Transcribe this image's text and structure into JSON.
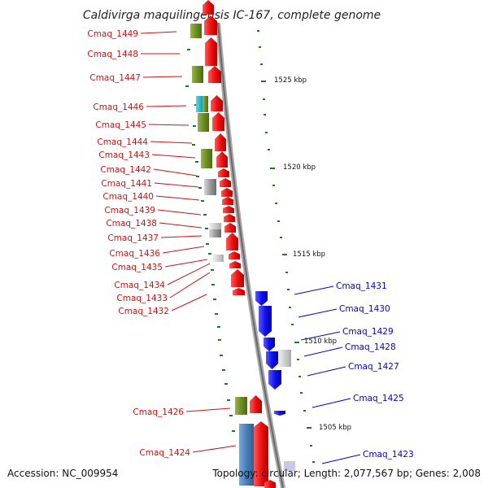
{
  "title": "Caldivirga maquilingensis IC-167, complete genome",
  "footer": {
    "accession": "Accession: NC_009954",
    "summary": "Topology: circular; Length: 2,077,567 bp; Genes: 2,008"
  },
  "scale_labels": [
    "1525 kbp",
    "1520 kbp",
    "1515 kbp",
    "1510 kbp",
    "1505 kbp"
  ],
  "forward_genes": [
    "Cmaq_1449",
    "Cmaq_1448",
    "Cmaq_1447",
    "Cmaq_1446",
    "Cmaq_1445",
    "Cmaq_1444",
    "Cmaq_1443",
    "Cmaq_1442",
    "Cmaq_1441",
    "Cmaq_1440",
    "Cmaq_1439",
    "Cmaq_1438",
    "Cmaq_1437",
    "Cmaq_1436",
    "Cmaq_1435",
    "Cmaq_1434",
    "Cmaq_1433",
    "Cmaq_1432",
    "Cmaq_1426",
    "Cmaq_1424"
  ],
  "reverse_genes": [
    "Cmaq_1431",
    "Cmaq_1430",
    "Cmaq_1429",
    "Cmaq_1428",
    "Cmaq_1427",
    "Cmaq_1425",
    "Cmaq_1423"
  ],
  "colors": {
    "forward": "#ee1111",
    "reverse": "#1111ee",
    "forward_label": "#cc1111",
    "reverse_label": "#0000cc",
    "cog_green": "#6b8e23",
    "cog_gray": "#888888",
    "cog_cyan": "#17b8cf",
    "cog_steel": "#4a7fb5",
    "tick": "#1e7a1e",
    "backbone": "#8a8a8a"
  }
}
